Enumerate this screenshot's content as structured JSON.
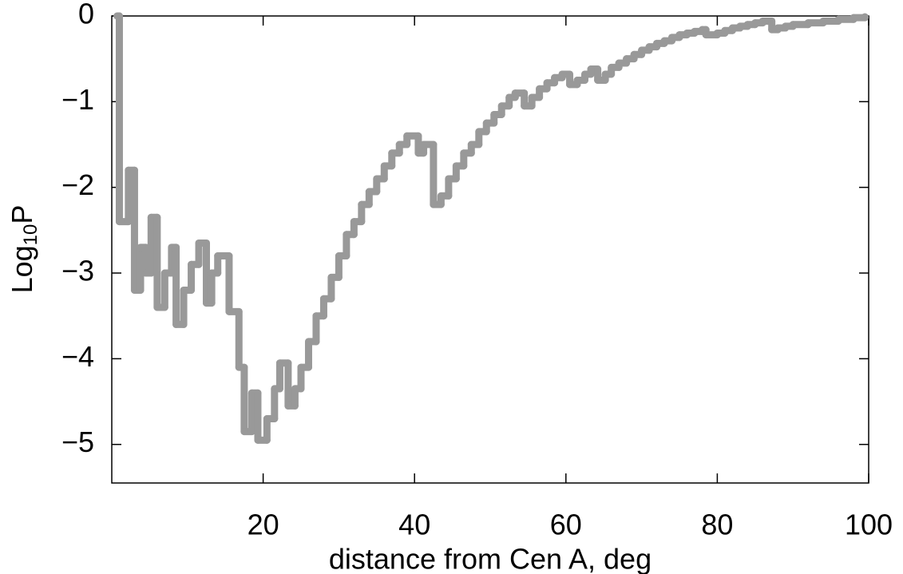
{
  "chart_data": {
    "type": "line",
    "step": "post",
    "x_label": "distance  from  Cen A,  deg",
    "y_label_parts": [
      "Log",
      "10",
      "P"
    ],
    "x": [
      0.7,
      1,
      2.2,
      3,
      3.8,
      4.5,
      5.2,
      6,
      7,
      7.9,
      8.5,
      9.5,
      10.5,
      11.5,
      12.5,
      13.2,
      14,
      15.5,
      16.8,
      17.5,
      18.5,
      19.3,
      20.5,
      21.5,
      22.2,
      23.3,
      24.2,
      25,
      26,
      27,
      28,
      29,
      30,
      31,
      32,
      33,
      34,
      35,
      36,
      37,
      38,
      39,
      40.5,
      41.2,
      42.5,
      43.5,
      44.5,
      45.5,
      46.5,
      47.5,
      48.5,
      49.5,
      50.5,
      51.5,
      52.5,
      53.3,
      54.5,
      55.5,
      56.5,
      57.5,
      58.5,
      59.5,
      60.5,
      61.5,
      62.5,
      63.3,
      64.2,
      65.2,
      66,
      67,
      68,
      69,
      70,
      71,
      72,
      73,
      74,
      75,
      76,
      77,
      78,
      78.5,
      80,
      81,
      82,
      83,
      84,
      85,
      86,
      87.2,
      88,
      89,
      90,
      92,
      94,
      96,
      98,
      99.5
    ],
    "series": [
      {
        "color": "#999999",
        "values": [
          0,
          -2.4,
          -1.8,
          -3.2,
          -2.7,
          -3.0,
          -2.35,
          -3.4,
          -3.0,
          -2.7,
          -3.6,
          -3.2,
          -2.9,
          -2.65,
          -3.35,
          -3.0,
          -2.8,
          -3.45,
          -4.1,
          -4.85,
          -4.4,
          -4.95,
          -4.7,
          -4.35,
          -4.05,
          -4.55,
          -4.35,
          -4.1,
          -3.8,
          -3.5,
          -3.3,
          -3.05,
          -2.8,
          -2.55,
          -2.4,
          -2.2,
          -2.05,
          -1.9,
          -1.75,
          -1.6,
          -1.5,
          -1.4,
          -1.6,
          -1.5,
          -2.2,
          -2.1,
          -1.9,
          -1.75,
          -1.6,
          -1.5,
          -1.35,
          -1.25,
          -1.15,
          -1.05,
          -0.95,
          -0.9,
          -1.05,
          -0.95,
          -0.85,
          -0.78,
          -0.72,
          -0.68,
          -0.8,
          -0.75,
          -0.68,
          -0.62,
          -0.75,
          -0.68,
          -0.6,
          -0.55,
          -0.5,
          -0.45,
          -0.4,
          -0.36,
          -0.32,
          -0.29,
          -0.25,
          -0.22,
          -0.2,
          -0.18,
          -0.16,
          -0.22,
          -0.2,
          -0.17,
          -0.14,
          -0.12,
          -0.1,
          -0.08,
          -0.06,
          -0.16,
          -0.14,
          -0.12,
          -0.1,
          -0.08,
          -0.06,
          -0.04,
          -0.02,
          -0.01
        ]
      }
    ],
    "xlim": [
      0,
      100
    ],
    "ylim": [
      -5.45,
      0
    ],
    "xticks": [
      20,
      40,
      60,
      80,
      100
    ],
    "yticks": [
      0,
      {
        "value": -1,
        "label": "−1"
      },
      {
        "value": -2,
        "label": "−2"
      },
      {
        "value": -3,
        "label": "−3"
      },
      {
        "value": -4,
        "label": "−4"
      },
      {
        "value": -5,
        "label": "−5"
      }
    ]
  }
}
